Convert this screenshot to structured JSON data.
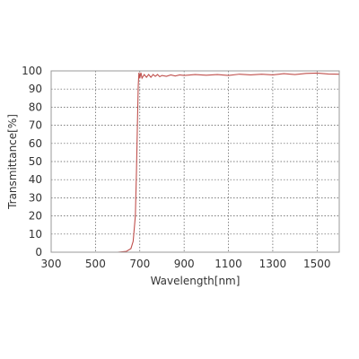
{
  "chart_data": {
    "type": "line",
    "xlabel": "Wavelength[nm]",
    "ylabel": "Transmittance[%]",
    "xlim": [
      300,
      1600
    ],
    "ylim": [
      0,
      100
    ],
    "x_ticks": [
      300,
      500,
      700,
      900,
      1100,
      1300,
      1500
    ],
    "y_ticks": [
      0,
      10,
      20,
      30,
      40,
      50,
      60,
      70,
      80,
      90,
      100
    ],
    "grid": true,
    "grid_style": "dotted",
    "legend": "none",
    "line_color": "#c0504d",
    "series": [
      {
        "x": [
          300,
          600,
          640,
          660,
          670,
          680,
          685,
          690,
          693,
          696,
          700,
          705,
          710,
          720,
          730,
          740,
          750,
          760,
          770,
          780,
          790,
          800,
          820,
          840,
          860,
          880,
          900,
          950,
          1000,
          1050,
          1100,
          1150,
          1200,
          1250,
          1300,
          1350,
          1400,
          1450,
          1500,
          1550,
          1600
        ],
        "y": [
          0,
          0,
          0.5,
          2,
          6,
          20,
          45,
          75,
          92,
          99,
          96,
          99,
          96,
          98,
          96.5,
          98,
          96.5,
          98,
          97,
          98,
          96.8,
          97.5,
          97,
          97.8,
          97.2,
          97.8,
          97.5,
          98,
          97.6,
          98,
          97.5,
          98.2,
          97.8,
          98.2,
          97.8,
          98.5,
          98,
          98.6,
          98.8,
          98.3,
          98.2
        ]
      }
    ]
  }
}
